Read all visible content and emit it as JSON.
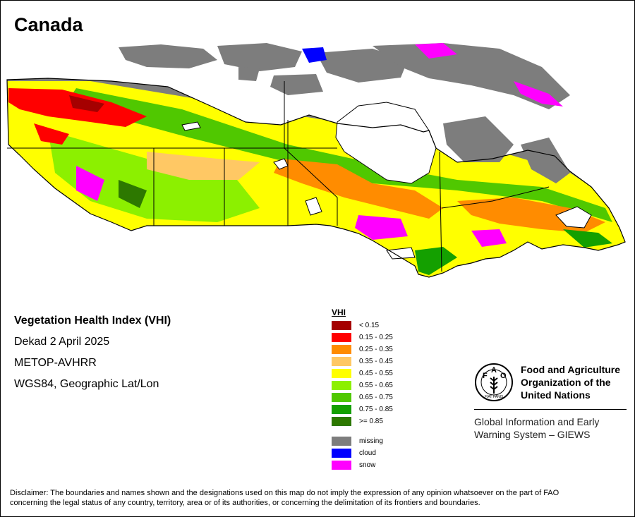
{
  "title": "Canada",
  "info": {
    "line1": "Vegetation Health Index (VHI)",
    "line2": "Dekad 2 April 2025",
    "line3": "METOP-AVHRR",
    "line4": "WGS84, Geographic Lat/Lon"
  },
  "legend": {
    "title": "VHI",
    "classes": [
      {
        "label": "< 0.15",
        "color": "#a50000"
      },
      {
        "label": "0.15 - 0.25",
        "color": "#ff0000"
      },
      {
        "label": "0.25 - 0.35",
        "color": "#ff8c00"
      },
      {
        "label": "0.35 - 0.45",
        "color": "#ffc864"
      },
      {
        "label": "0.45 - 0.55",
        "color": "#ffff00"
      },
      {
        "label": "0.55 - 0.65",
        "color": "#8cf000"
      },
      {
        "label": "0.65 - 0.75",
        "color": "#50c800"
      },
      {
        "label": "0.75 - 0.85",
        "color": "#14a000"
      },
      {
        "label": ">= 0.85",
        "color": "#2d7800"
      }
    ],
    "other": [
      {
        "label": "missing",
        "color": "#7d7d7d"
      },
      {
        "label": "cloud",
        "color": "#0000ff"
      },
      {
        "label": "snow",
        "color": "#ff00ff"
      }
    ]
  },
  "logo": {
    "org_line1": "Food and Agriculture",
    "org_line2": "Organization of the",
    "org_line3": "United Nations",
    "emblem_text": "FAO",
    "emblem_motto": "FIAT PANIS",
    "giews_line1": "Global Information and Early",
    "giews_line2": "Warning System – GIEWS"
  },
  "disclaimer_line1": "Disclaimer: The boundaries and names shown and the designations used on this map do not imply the expression of any opinion whatsoever on the part of FAO",
  "disclaimer_line2": "concerning the legal status of any country, territory, area or of its authorities, or concerning the delimitation of its frontiers and boundaries."
}
